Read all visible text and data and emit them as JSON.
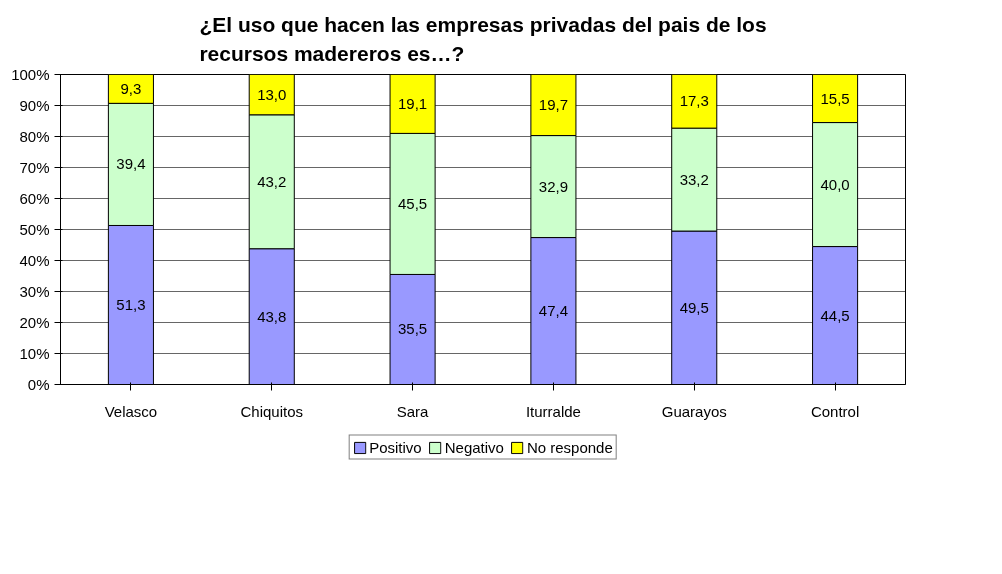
{
  "chart_data": {
    "type": "bar",
    "stacked": true,
    "title": "¿El uso que hacen las empresas privadas del pais de los\nrecursos madereros  es…?",
    "categories": [
      "Velasco",
      "Chiquitos",
      "Sara",
      "Iturralde",
      "Guarayos",
      "Control"
    ],
    "series": [
      {
        "name": "Positivo",
        "color": "#9999ff",
        "values": [
          51.3,
          43.8,
          35.5,
          47.4,
          49.5,
          44.5
        ],
        "value_labels": [
          "51,3",
          "43,8",
          "35,5",
          "47,4",
          "49,5",
          "44,5"
        ]
      },
      {
        "name": "Negativo",
        "color": "#ccffcc",
        "values": [
          39.4,
          43.2,
          45.5,
          32.9,
          33.2,
          40.0
        ],
        "value_labels": [
          "39,4",
          "43,2",
          "45,5",
          "32,9",
          "33,2",
          "40,0"
        ]
      },
      {
        "name": "No responde",
        "color": "#ffff00",
        "values": [
          9.3,
          13.0,
          19.1,
          19.7,
          17.3,
          15.5
        ],
        "value_labels": [
          "9,3",
          "13,0",
          "19,1",
          "19,7",
          "17,3",
          "15,5"
        ]
      }
    ],
    "ylim": [
      0,
      100
    ],
    "yticks": [
      {
        "value": 0,
        "label": "0%"
      },
      {
        "value": 10,
        "label": "10%"
      },
      {
        "value": 20,
        "label": "20%"
      },
      {
        "value": 30,
        "label": "30%"
      },
      {
        "value": 40,
        "label": "40%"
      },
      {
        "value": 50,
        "label": "50%"
      },
      {
        "value": 60,
        "label": "60%"
      },
      {
        "value": 70,
        "label": "70%"
      },
      {
        "value": 80,
        "label": "80%"
      },
      {
        "value": 90,
        "label": "90%"
      },
      {
        "value": 100,
        "label": "100%"
      }
    ],
    "grid": "y",
    "legend": "bottom"
  }
}
